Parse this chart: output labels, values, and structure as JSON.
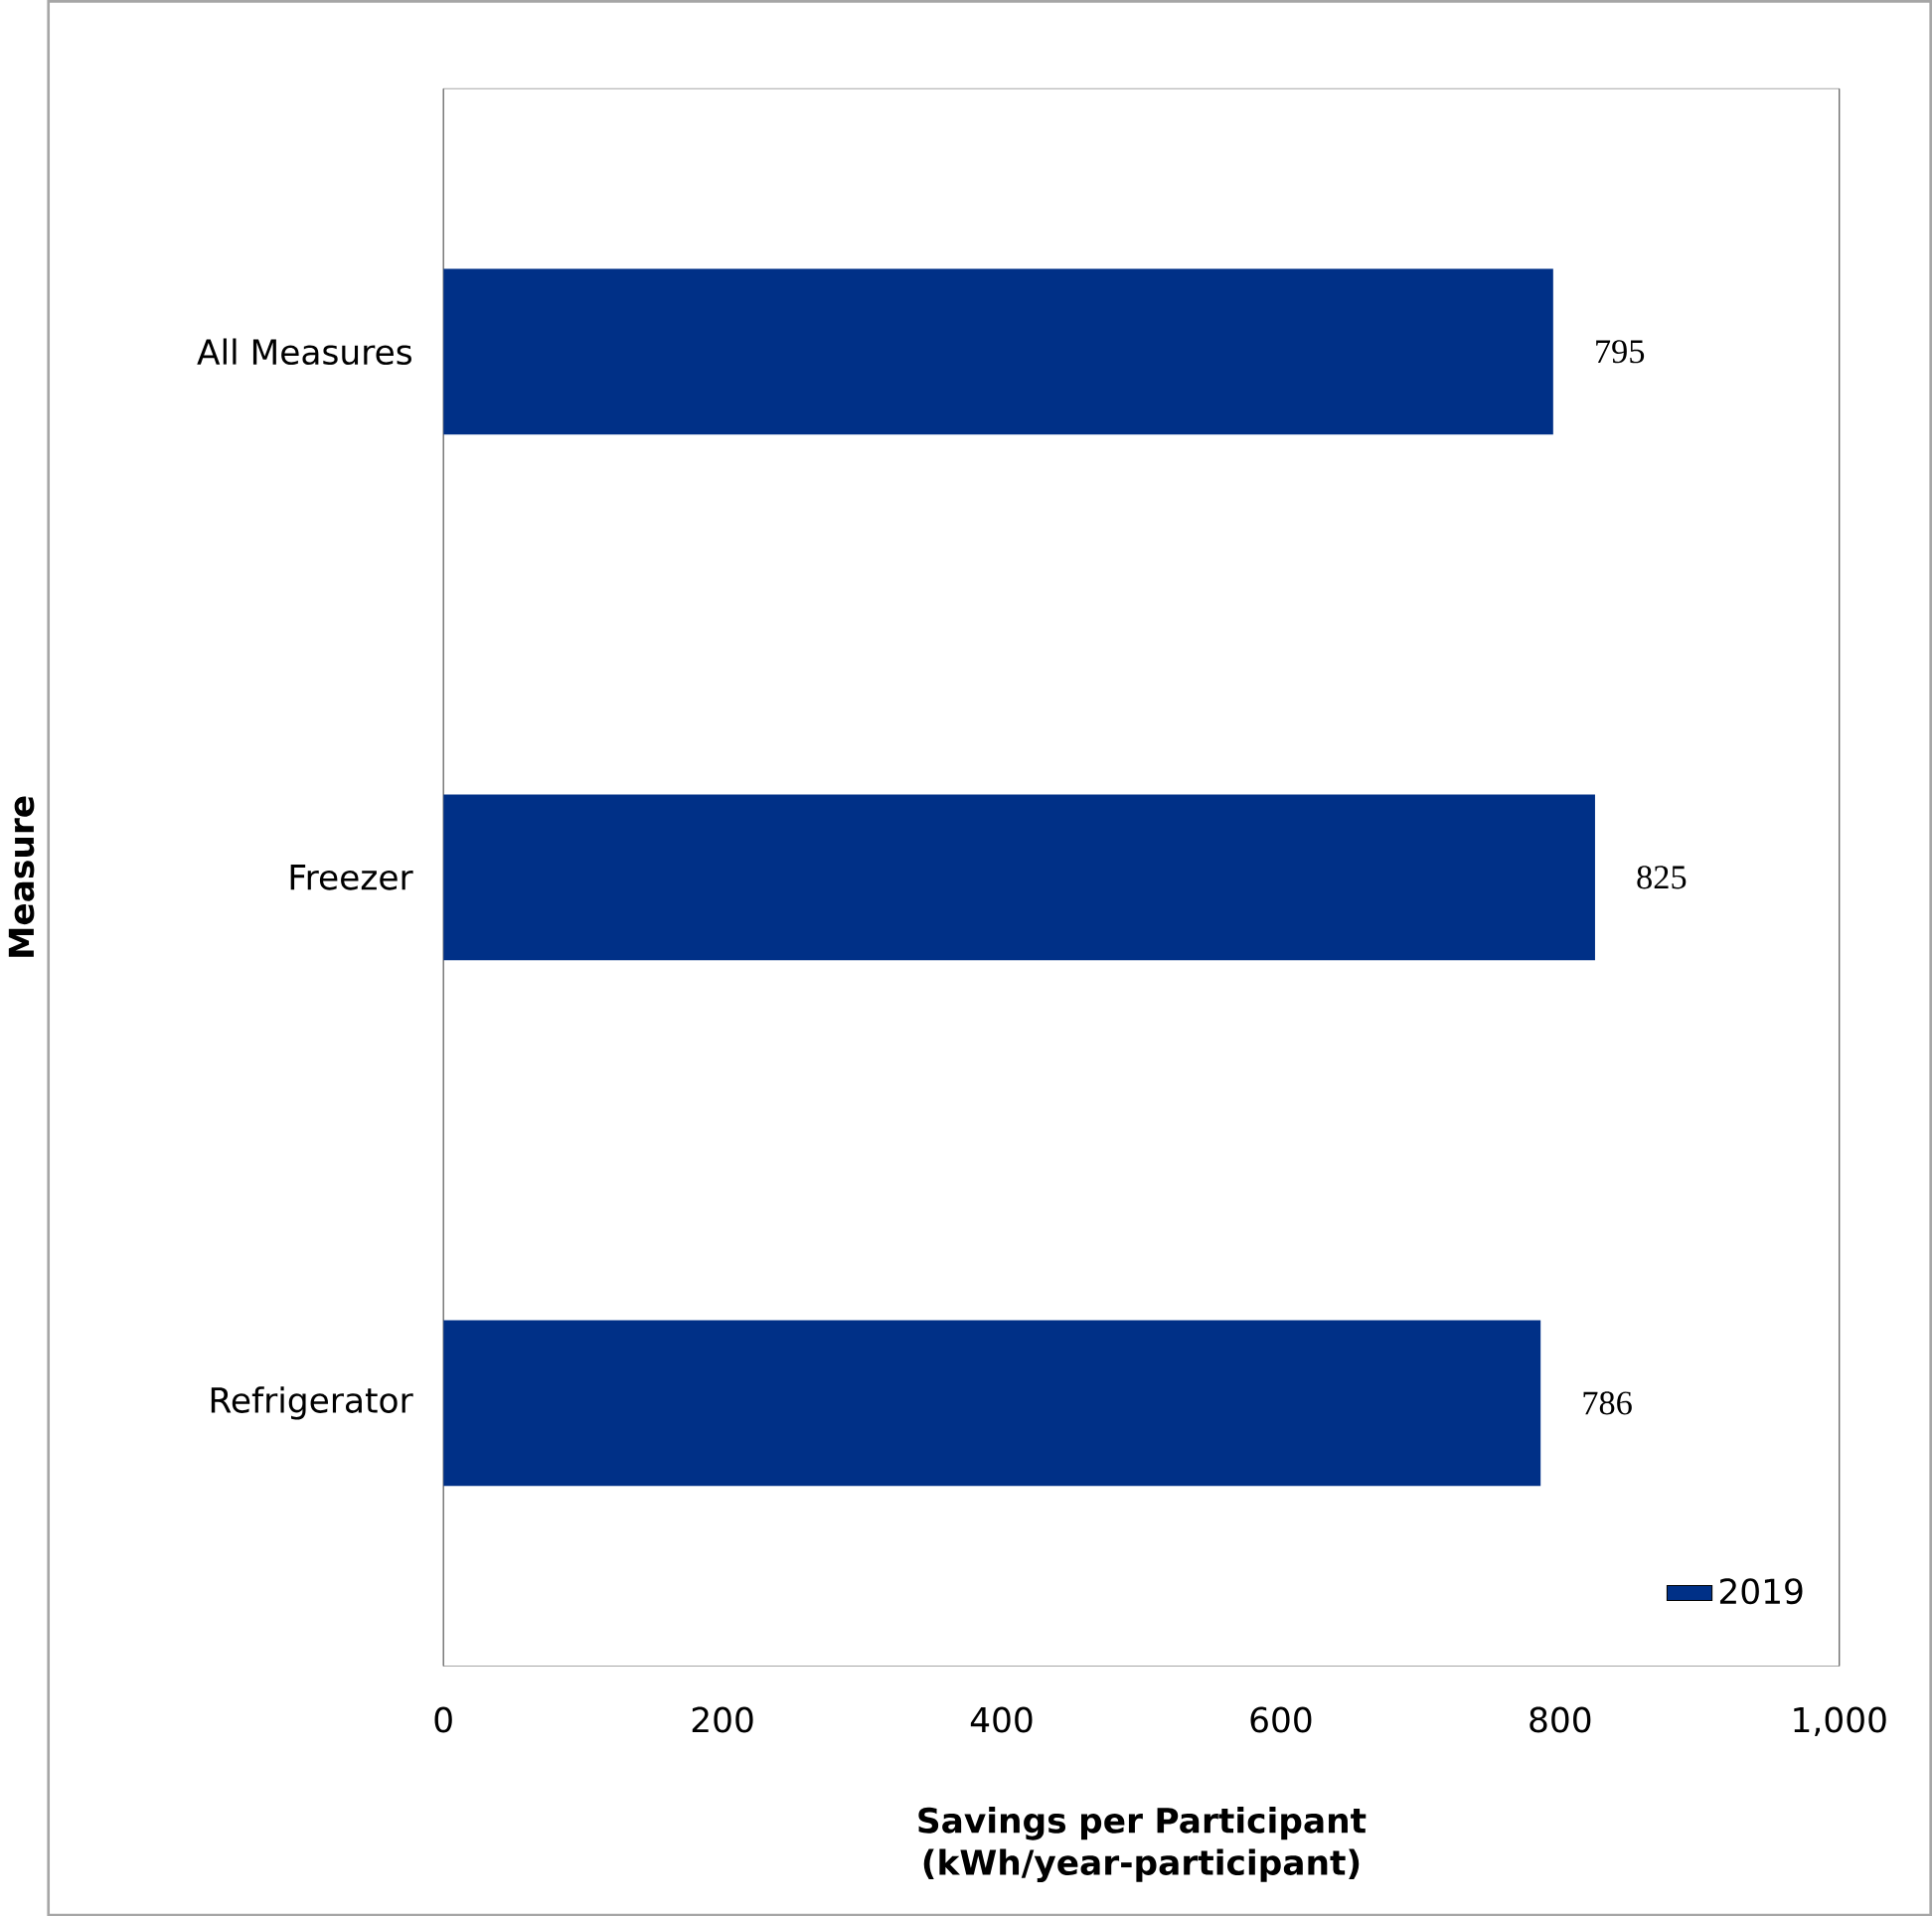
{
  "chart_data": {
    "type": "bar",
    "orientation": "horizontal",
    "xlabel": "Savings per Participant (kWh/year-participant)",
    "ylabel": "Measure",
    "categories": [
      "All Measures",
      "Freezer",
      "Refrigerator"
    ],
    "series": [
      {
        "name": "2019",
        "color": "#003087",
        "values": [
          795,
          825,
          786
        ]
      }
    ],
    "xlim": [
      0,
      1000
    ],
    "xticks": [
      0,
      200,
      400,
      600,
      800,
      {
        "value": 1000,
        "label": "1,000"
      }
    ],
    "data_labels": true,
    "legend": "bottom right",
    "grid": false
  }
}
